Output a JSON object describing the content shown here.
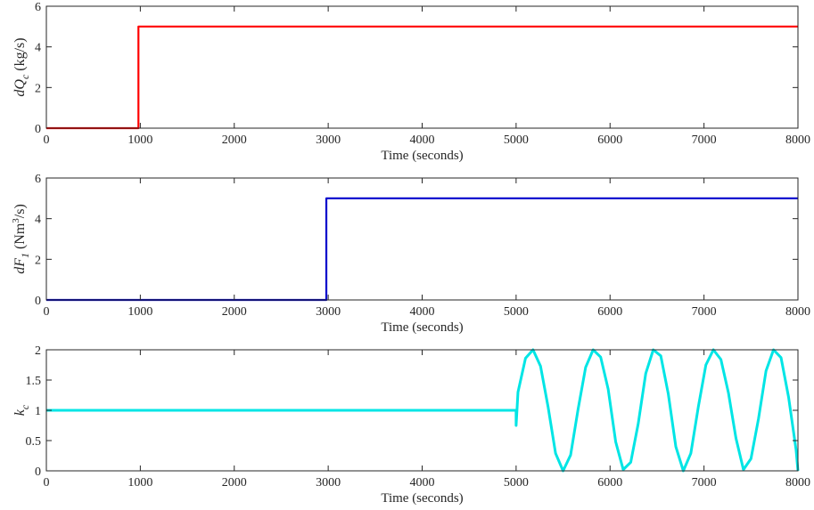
{
  "chart_data": [
    {
      "type": "line",
      "ylabel": "dQ",
      "ylabel_sub": "c",
      "ylabel_unit": " (kg/s)",
      "xlabel": "Time (seconds)",
      "xlim": [
        0,
        8000
      ],
      "ylim": [
        0,
        6
      ],
      "xticks": [
        "0",
        "1000",
        "2000",
        "3000",
        "4000",
        "5000",
        "6000",
        "7000",
        "8000"
      ],
      "yticks": [
        "0",
        "2",
        "4",
        "6"
      ],
      "grid": false,
      "color": "#ff0000",
      "series": [
        {
          "x": [
            0,
            980,
            980,
            8000
          ],
          "y": [
            0,
            0,
            5,
            5
          ]
        }
      ]
    },
    {
      "type": "line",
      "ylabel": "dF",
      "ylabel_sub": "1",
      "ylabel_unit_pre": " (Nm",
      "ylabel_sup": "3",
      "ylabel_unit_post": "/s)",
      "xlabel": "Time (seconds)",
      "xlim": [
        0,
        8000
      ],
      "ylim": [
        0,
        6
      ],
      "xticks": [
        "0",
        "1000",
        "2000",
        "3000",
        "4000",
        "5000",
        "6000",
        "7000",
        "8000"
      ],
      "yticks": [
        "0",
        "2",
        "4",
        "6"
      ],
      "grid": false,
      "color": "#0000cc",
      "series": [
        {
          "x": [
            0,
            2980,
            2980,
            8000
          ],
          "y": [
            0,
            0,
            5,
            5
          ]
        }
      ]
    },
    {
      "type": "line",
      "ylabel": "k",
      "ylabel_sub": "c",
      "xlabel": "Time (seconds)",
      "xlim": [
        0,
        8000
      ],
      "ylim": [
        0,
        2
      ],
      "xticks": [
        "0",
        "1000",
        "2000",
        "3000",
        "4000",
        "5000",
        "6000",
        "7000",
        "8000"
      ],
      "yticks": [
        "0",
        "0.5",
        "1",
        "1.5",
        "2"
      ],
      "grid": false,
      "color": "#00e5e5",
      "series": [
        {
          "x": [
            0,
            5000,
            5000,
            5020,
            5100,
            5180,
            5260,
            5340,
            5420,
            5500,
            5580,
            5660,
            5740,
            5820,
            5900,
            5980,
            6060,
            6140,
            6220,
            6300,
            6380,
            6460,
            6540,
            6620,
            6700,
            6780,
            6860,
            6940,
            7020,
            7100,
            7180,
            7260,
            7340,
            7420,
            7500,
            7580,
            7660,
            7740,
            7820,
            7900,
            7980,
            8000
          ],
          "y": [
            1,
            1,
            0.75,
            1.3,
            1.86,
            2.0,
            1.73,
            1.06,
            0.29,
            0.0,
            0.26,
            1.02,
            1.71,
            2.0,
            1.88,
            1.35,
            0.48,
            0.02,
            0.14,
            0.78,
            1.61,
            2.0,
            1.9,
            1.27,
            0.4,
            0.0,
            0.29,
            1.06,
            1.75,
            2.0,
            1.84,
            1.29,
            0.54,
            0.02,
            0.2,
            0.86,
            1.65,
            2.0,
            1.87,
            1.22,
            0.35,
            0.0
          ]
        }
      ]
    }
  ]
}
